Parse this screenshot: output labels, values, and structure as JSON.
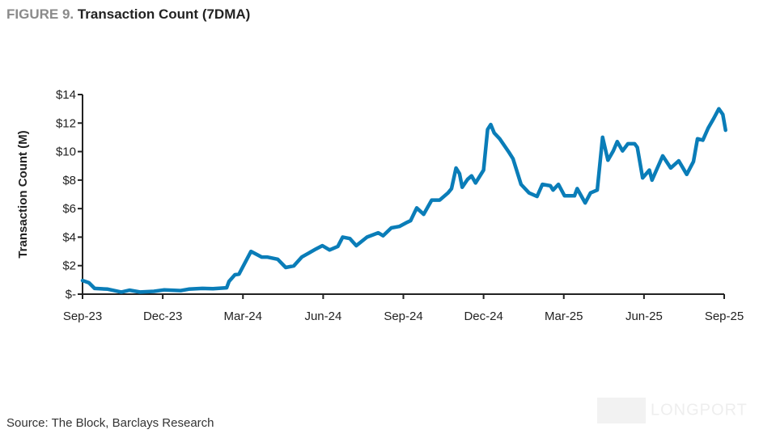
{
  "title_prefix": "FIGURE 9.",
  "title": "Transaction Count (7DMA)",
  "source": "Source: The Block, Barclays Research",
  "watermark": "LONGPORT",
  "chart_data": {
    "type": "line",
    "title": "Transaction Count (7DMA)",
    "xlabel": "",
    "ylabel": "Transaction Count (M)",
    "ylim": [
      0,
      14
    ],
    "yticks": [
      0,
      2,
      4,
      6,
      8,
      10,
      12,
      14
    ],
    "ytick_labels": [
      "$-",
      "$2",
      "$4",
      "$6",
      "$8",
      "$10",
      "$12",
      "$14"
    ],
    "x_unit": "months since Sep-23",
    "xlim": [
      0,
      24
    ],
    "xticks": [
      0,
      3,
      6,
      9,
      12,
      15,
      18,
      21,
      24
    ],
    "xtick_labels": [
      "Sep-23",
      "Dec-23",
      "Mar-24",
      "Jun-24",
      "Sep-24",
      "Dec-24",
      "Mar-25",
      "Jun-25",
      "Sep-25"
    ],
    "color": "#0a7db8",
    "grid": false,
    "legend": "none",
    "series": [
      {
        "name": "Transaction Count (7DMA)",
        "x": [
          0,
          0.24,
          0.45,
          0.94,
          1.45,
          1.76,
          2.15,
          2.67,
          3.06,
          3.67,
          3.97,
          4.48,
          4.88,
          5.39,
          5.48,
          5.7,
          5.85,
          6.3,
          6.7,
          6.9,
          7.3,
          7.6,
          7.9,
          8.2,
          8.73,
          8.97,
          9.24,
          9.55,
          9.73,
          10.0,
          10.24,
          10.64,
          11.06,
          11.24,
          11.55,
          11.85,
          12.15,
          12.27,
          12.5,
          12.76,
          13.06,
          13.36,
          13.67,
          13.8,
          13.97,
          14.1,
          14.2,
          14.4,
          14.55,
          14.7,
          15.0,
          15.15,
          15.27,
          15.4,
          15.6,
          15.95,
          16.1,
          16.4,
          16.7,
          17.0,
          17.2,
          17.5,
          17.6,
          17.8,
          18.03,
          18.4,
          18.5,
          18.8,
          19.0,
          19.25,
          19.45,
          19.65,
          19.85,
          20.0,
          20.2,
          20.4,
          20.65,
          20.75,
          20.95,
          21.2,
          21.3,
          21.7,
          22.0,
          22.3,
          22.6,
          22.85,
          23.0,
          23.2,
          23.4,
          23.6,
          23.8,
          23.95,
          24.05
        ],
        "values": [
          0.96,
          0.8,
          0.4,
          0.35,
          0.15,
          0.28,
          0.15,
          0.2,
          0.3,
          0.25,
          0.35,
          0.4,
          0.38,
          0.45,
          0.9,
          1.36,
          1.4,
          3.0,
          2.6,
          2.6,
          2.45,
          1.87,
          1.98,
          2.6,
          3.17,
          3.4,
          3.1,
          3.35,
          4.0,
          3.9,
          3.4,
          4.0,
          4.3,
          4.1,
          4.65,
          4.75,
          5.05,
          5.15,
          6.05,
          5.6,
          6.6,
          6.6,
          7.1,
          7.4,
          8.85,
          8.45,
          7.5,
          8.05,
          8.3,
          7.8,
          8.7,
          11.55,
          11.9,
          11.3,
          10.9,
          9.95,
          9.5,
          7.7,
          7.1,
          6.85,
          7.7,
          7.6,
          7.3,
          7.7,
          6.9,
          6.9,
          7.4,
          6.4,
          7.1,
          7.3,
          11.0,
          9.4,
          10.05,
          10.7,
          10.05,
          10.55,
          10.55,
          10.3,
          8.15,
          8.7,
          8.0,
          9.7,
          8.85,
          9.35,
          8.4,
          9.3,
          10.9,
          10.8,
          11.65,
          12.3,
          13.0,
          12.6,
          11.5
        ]
      }
    ]
  }
}
